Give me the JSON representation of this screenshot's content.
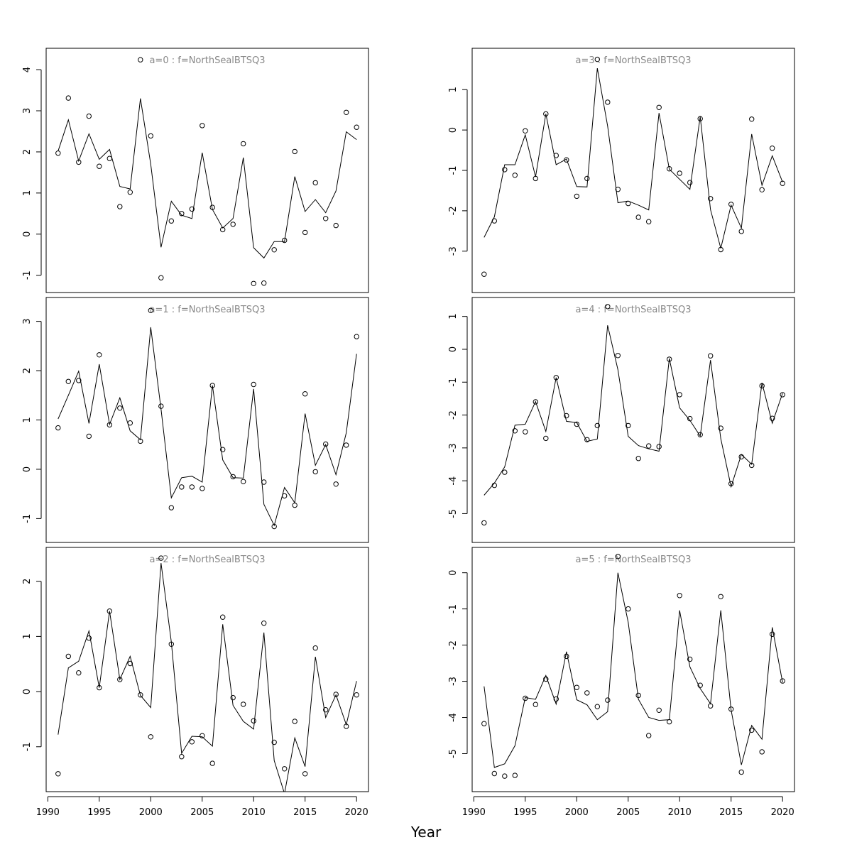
{
  "figure": {
    "xlabel": "Year"
  },
  "chart_data": [
    {
      "type": "line",
      "title": "a=0 : f=NorthSealBTSQ3",
      "xlabel": "Year",
      "ylabel": "",
      "xlim": [
        1991,
        2020
      ],
      "ylim": [
        -1.2,
        4.3
      ],
      "xticks": [
        1990,
        1995,
        2000,
        2005,
        2010,
        2015,
        2020
      ],
      "yticks": [
        -1,
        0,
        1,
        2,
        3,
        4
      ],
      "show_x_ticks": false,
      "x": [
        1991,
        1992,
        1993,
        1994,
        1995,
        1996,
        1997,
        1998,
        1999,
        2000,
        2001,
        2002,
        2003,
        2004,
        2005,
        2006,
        2007,
        2008,
        2009,
        2010,
        2011,
        2012,
        2013,
        2014,
        2015,
        2016,
        2017,
        2018,
        2019,
        2020
      ],
      "series": [
        {
          "kind": "points",
          "values": [
            1.97,
            3.31,
            1.75,
            2.87,
            1.65,
            1.84,
            0.67,
            1.02,
            4.24,
            2.39,
            -1.06,
            0.32,
            0.5,
            0.61,
            2.64,
            0.65,
            0.11,
            0.24,
            2.2,
            -1.2,
            -1.19,
            -0.38,
            -0.15,
            2.01,
            0.04,
            1.25,
            0.38,
            0.21,
            2.96,
            2.6
          ]
        },
        {
          "kind": "line",
          "values": [
            2.02,
            2.78,
            1.78,
            2.44,
            1.82,
            2.06,
            1.16,
            1.1,
            3.3,
            1.7,
            -0.32,
            0.8,
            0.46,
            0.38,
            1.98,
            0.6,
            0.15,
            0.38,
            1.86,
            -0.33,
            -0.58,
            -0.18,
            -0.18,
            1.4,
            0.55,
            0.84,
            0.52,
            1.05,
            2.49,
            2.3
          ]
        }
      ]
    },
    {
      "type": "line",
      "title": "a=3 : f=NorthSealBTSQ3",
      "xlabel": "Year",
      "ylabel": "",
      "xlim": [
        1991,
        2020
      ],
      "ylim": [
        -3.8,
        1.8
      ],
      "xticks": [
        1990,
        1995,
        2000,
        2005,
        2010,
        2015,
        2020
      ],
      "yticks": [
        -3,
        -2,
        -1,
        0,
        1
      ],
      "show_x_ticks": false,
      "x": [
        1991,
        1992,
        1993,
        1994,
        1995,
        1996,
        1997,
        1998,
        1999,
        2000,
        2001,
        2002,
        2003,
        2004,
        2005,
        2006,
        2007,
        2008,
        2009,
        2010,
        2011,
        2012,
        2013,
        2014,
        2015,
        2016,
        2017,
        2018,
        2019,
        2020
      ],
      "series": [
        {
          "kind": "points",
          "values": [
            -3.57,
            -2.25,
            -0.98,
            -1.12,
            -0.02,
            -1.2,
            0.4,
            -0.63,
            -0.74,
            -1.64,
            -1.2,
            1.75,
            0.69,
            -1.47,
            -1.82,
            -2.16,
            -2.27,
            0.56,
            -0.96,
            -1.07,
            -1.3,
            0.28,
            -1.7,
            -2.96,
            -1.84,
            -2.51,
            0.27,
            -1.48,
            -0.45,
            -1.32
          ]
        },
        {
          "kind": "line",
          "values": [
            -2.66,
            -2.15,
            -0.86,
            -0.86,
            -0.12,
            -1.16,
            0.4,
            -0.86,
            -0.72,
            -1.4,
            -1.41,
            1.53,
            0.1,
            -1.8,
            -1.76,
            -1.86,
            -1.98,
            0.42,
            -0.97,
            -1.22,
            -1.47,
            0.33,
            -1.97,
            -2.93,
            -1.86,
            -2.43,
            -0.1,
            -1.37,
            -0.64,
            -1.29
          ]
        }
      ]
    },
    {
      "type": "line",
      "title": "a=1 : f=NorthSealBTSQ3",
      "xlabel": "Year",
      "ylabel": "",
      "xlim": [
        1991,
        2020
      ],
      "ylim": [
        -1.3,
        3.3
      ],
      "xticks": [
        1990,
        1995,
        2000,
        2005,
        2010,
        2015,
        2020
      ],
      "yticks": [
        -1,
        0,
        1,
        2,
        3
      ],
      "show_x_ticks": false,
      "x": [
        1991,
        1992,
        1993,
        1994,
        1995,
        1996,
        1997,
        1998,
        1999,
        2000,
        2001,
        2002,
        2003,
        2004,
        2005,
        2006,
        2007,
        2008,
        2009,
        2010,
        2011,
        2012,
        2013,
        2014,
        2015,
        2016,
        2017,
        2018,
        2019,
        2020
      ],
      "series": [
        {
          "kind": "points",
          "values": [
            0.84,
            1.78,
            1.8,
            0.67,
            2.32,
            0.9,
            1.24,
            0.94,
            0.57,
            3.22,
            1.28,
            -0.78,
            -0.36,
            -0.36,
            -0.39,
            1.7,
            0.4,
            -0.15,
            -0.25,
            1.72,
            -0.26,
            -1.16,
            -0.54,
            -0.73,
            1.53,
            -0.05,
            0.51,
            -0.3,
            0.49,
            2.69
          ]
        },
        {
          "kind": "line",
          "values": [
            1.02,
            1.5,
            1.99,
            0.93,
            2.13,
            0.91,
            1.45,
            0.78,
            0.6,
            2.88,
            1.22,
            -0.58,
            -0.17,
            -0.14,
            -0.26,
            1.7,
            0.19,
            -0.17,
            -0.18,
            1.63,
            -0.71,
            -1.14,
            -0.37,
            -0.68,
            1.13,
            0.08,
            0.5,
            -0.11,
            0.74,
            2.34
          ]
        }
      ]
    },
    {
      "type": "line",
      "title": "a=4 : f=NorthSealBTSQ3",
      "xlabel": "Year",
      "ylabel": "",
      "xlim": [
        1991,
        2020
      ],
      "ylim": [
        -5.6,
        1.3
      ],
      "xticks": [
        1990,
        1995,
        2000,
        2005,
        2010,
        2015,
        2020
      ],
      "yticks": [
        -5,
        -4,
        -3,
        -2,
        -1,
        0,
        1
      ],
      "show_x_ticks": false,
      "x": [
        1991,
        1992,
        1993,
        1994,
        1995,
        1996,
        1997,
        1998,
        1999,
        2000,
        2001,
        2002,
        2003,
        2004,
        2005,
        2006,
        2007,
        2008,
        2009,
        2010,
        2011,
        2012,
        2013,
        2014,
        2015,
        2016,
        2017,
        2018,
        2019,
        2020
      ],
      "series": [
        {
          "kind": "points",
          "values": [
            -5.28,
            -4.14,
            -3.74,
            -2.48,
            -2.51,
            -1.6,
            -2.71,
            -0.86,
            -2.02,
            -2.28,
            -2.75,
            -2.32,
            1.3,
            -0.19,
            -2.32,
            -3.32,
            -2.94,
            -2.96,
            -0.3,
            -1.38,
            -2.11,
            -2.6,
            -0.2,
            -2.4,
            -4.09,
            -3.27,
            -3.53,
            -1.11,
            -2.1,
            -1.38
          ]
        },
        {
          "kind": "line",
          "values": [
            -4.44,
            -4.07,
            -3.58,
            -2.31,
            -2.28,
            -1.59,
            -2.5,
            -0.86,
            -2.19,
            -2.23,
            -2.8,
            -2.73,
            0.73,
            -0.62,
            -2.65,
            -2.93,
            -3.03,
            -3.1,
            -0.28,
            -1.78,
            -2.16,
            -2.64,
            -0.33,
            -2.72,
            -4.18,
            -3.2,
            -3.5,
            -1.02,
            -2.25,
            -1.34
          ]
        }
      ]
    },
    {
      "type": "line",
      "title": "a=2 : f=NorthSealBTSQ3",
      "xlabel": "Year",
      "ylabel": "",
      "xlim": [
        1991,
        2020
      ],
      "ylim": [
        -1.65,
        2.45
      ],
      "xticks": [
        1990,
        1995,
        2000,
        2005,
        2010,
        2015,
        2020
      ],
      "yticks": [
        -1,
        0,
        1,
        2
      ],
      "show_x_ticks": true,
      "x": [
        1991,
        1992,
        1993,
        1994,
        1995,
        1996,
        1997,
        1998,
        1999,
        2000,
        2001,
        2002,
        2003,
        2004,
        2005,
        2006,
        2007,
        2008,
        2009,
        2010,
        2011,
        2012,
        2013,
        2014,
        2015,
        2016,
        2017,
        2018,
        2019,
        2020
      ],
      "series": [
        {
          "kind": "points",
          "values": [
            -1.49,
            0.64,
            0.34,
            0.97,
            0.07,
            1.46,
            0.22,
            0.51,
            -0.06,
            -0.82,
            2.42,
            0.86,
            -1.18,
            -0.91,
            -0.8,
            -1.3,
            1.35,
            -0.11,
            -0.23,
            -0.53,
            1.24,
            -0.92,
            -1.4,
            -0.54,
            -1.49,
            0.79,
            -0.33,
            -0.05,
            -0.63,
            -0.06
          ]
        },
        {
          "kind": "line",
          "values": [
            -0.78,
            0.43,
            0.55,
            1.1,
            0.07,
            1.46,
            0.22,
            0.64,
            -0.07,
            -0.29,
            2.33,
            0.9,
            -1.12,
            -0.81,
            -0.82,
            -0.99,
            1.22,
            -0.25,
            -0.54,
            -0.68,
            1.07,
            -1.25,
            -1.85,
            -0.84,
            -1.36,
            0.63,
            -0.47,
            -0.06,
            -0.6,
            0.19
          ]
        }
      ]
    },
    {
      "type": "line",
      "title": "a=5 : f=NorthSealBTSQ3",
      "xlabel": "Year",
      "ylabel": "",
      "xlim": [
        1991,
        2020
      ],
      "ylim": [
        -5.8,
        0.45
      ],
      "xticks": [
        1990,
        1995,
        2000,
        2005,
        2010,
        2015,
        2020
      ],
      "yticks": [
        -5,
        -4,
        -3,
        -2,
        -1,
        0
      ],
      "show_x_ticks": true,
      "x": [
        1991,
        1992,
        1993,
        1994,
        1995,
        1996,
        1997,
        1998,
        1999,
        2000,
        2001,
        2002,
        2003,
        2004,
        2005,
        2006,
        2007,
        2008,
        2009,
        2010,
        2011,
        2012,
        2013,
        2014,
        2015,
        2016,
        2017,
        2018,
        2019,
        2020
      ],
      "series": [
        {
          "kind": "points",
          "values": [
            -4.17,
            -5.55,
            -5.62,
            -5.6,
            -3.47,
            -3.64,
            -2.94,
            -3.49,
            -2.31,
            -3.17,
            -3.32,
            -3.7,
            -3.52,
            0.45,
            -1.0,
            -3.39,
            -4.5,
            -3.8,
            -4.12,
            -0.63,
            -2.39,
            -3.11,
            -3.68,
            -0.66,
            -3.77,
            -5.51,
            -4.35,
            -4.95,
            -1.7,
            -2.99
          ]
        },
        {
          "kind": "line",
          "values": [
            -3.14,
            -5.38,
            -5.28,
            -4.78,
            -3.45,
            -3.5,
            -2.84,
            -3.63,
            -2.18,
            -3.51,
            -3.65,
            -4.06,
            -3.84,
            0.0,
            -1.37,
            -3.5,
            -4.0,
            -4.08,
            -4.06,
            -1.04,
            -2.6,
            -3.2,
            -3.62,
            -1.04,
            -3.79,
            -5.31,
            -4.22,
            -4.6,
            -1.51,
            -3.03
          ]
        }
      ]
    }
  ]
}
